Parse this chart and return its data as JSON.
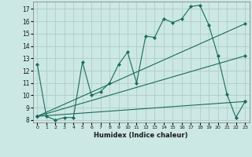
{
  "xlabel": "Humidex (Indice chaleur)",
  "bg_color": "#cce8e4",
  "grid_color": "#b0cccc",
  "line_color": "#1a6b5a",
  "xlim": [
    -0.5,
    23.5
  ],
  "ylim": [
    7.8,
    17.6
  ],
  "yticks": [
    8,
    9,
    10,
    11,
    12,
    13,
    14,
    15,
    16,
    17
  ],
  "xticks": [
    0,
    1,
    2,
    3,
    4,
    5,
    6,
    7,
    8,
    9,
    10,
    11,
    12,
    13,
    14,
    15,
    16,
    17,
    18,
    19,
    20,
    21,
    22,
    23
  ],
  "series1_x": [
    0,
    1,
    2,
    3,
    4,
    5,
    6,
    7,
    8,
    9,
    10,
    11,
    12,
    13,
    14,
    15,
    16,
    17,
    18,
    19,
    20,
    21,
    22,
    23
  ],
  "series1_y": [
    12.5,
    8.3,
    8.0,
    8.2,
    8.2,
    12.7,
    10.0,
    10.3,
    11.0,
    12.5,
    13.5,
    11.0,
    14.8,
    14.7,
    16.2,
    15.9,
    16.2,
    17.2,
    17.3,
    15.7,
    13.2,
    10.1,
    8.2,
    9.5
  ],
  "series2_x": [
    0,
    23
  ],
  "series2_y": [
    8.3,
    15.8
  ],
  "series3_x": [
    0,
    23
  ],
  "series3_y": [
    8.3,
    13.2
  ],
  "series4_x": [
    0,
    23
  ],
  "series4_y": [
    8.3,
    9.5
  ]
}
